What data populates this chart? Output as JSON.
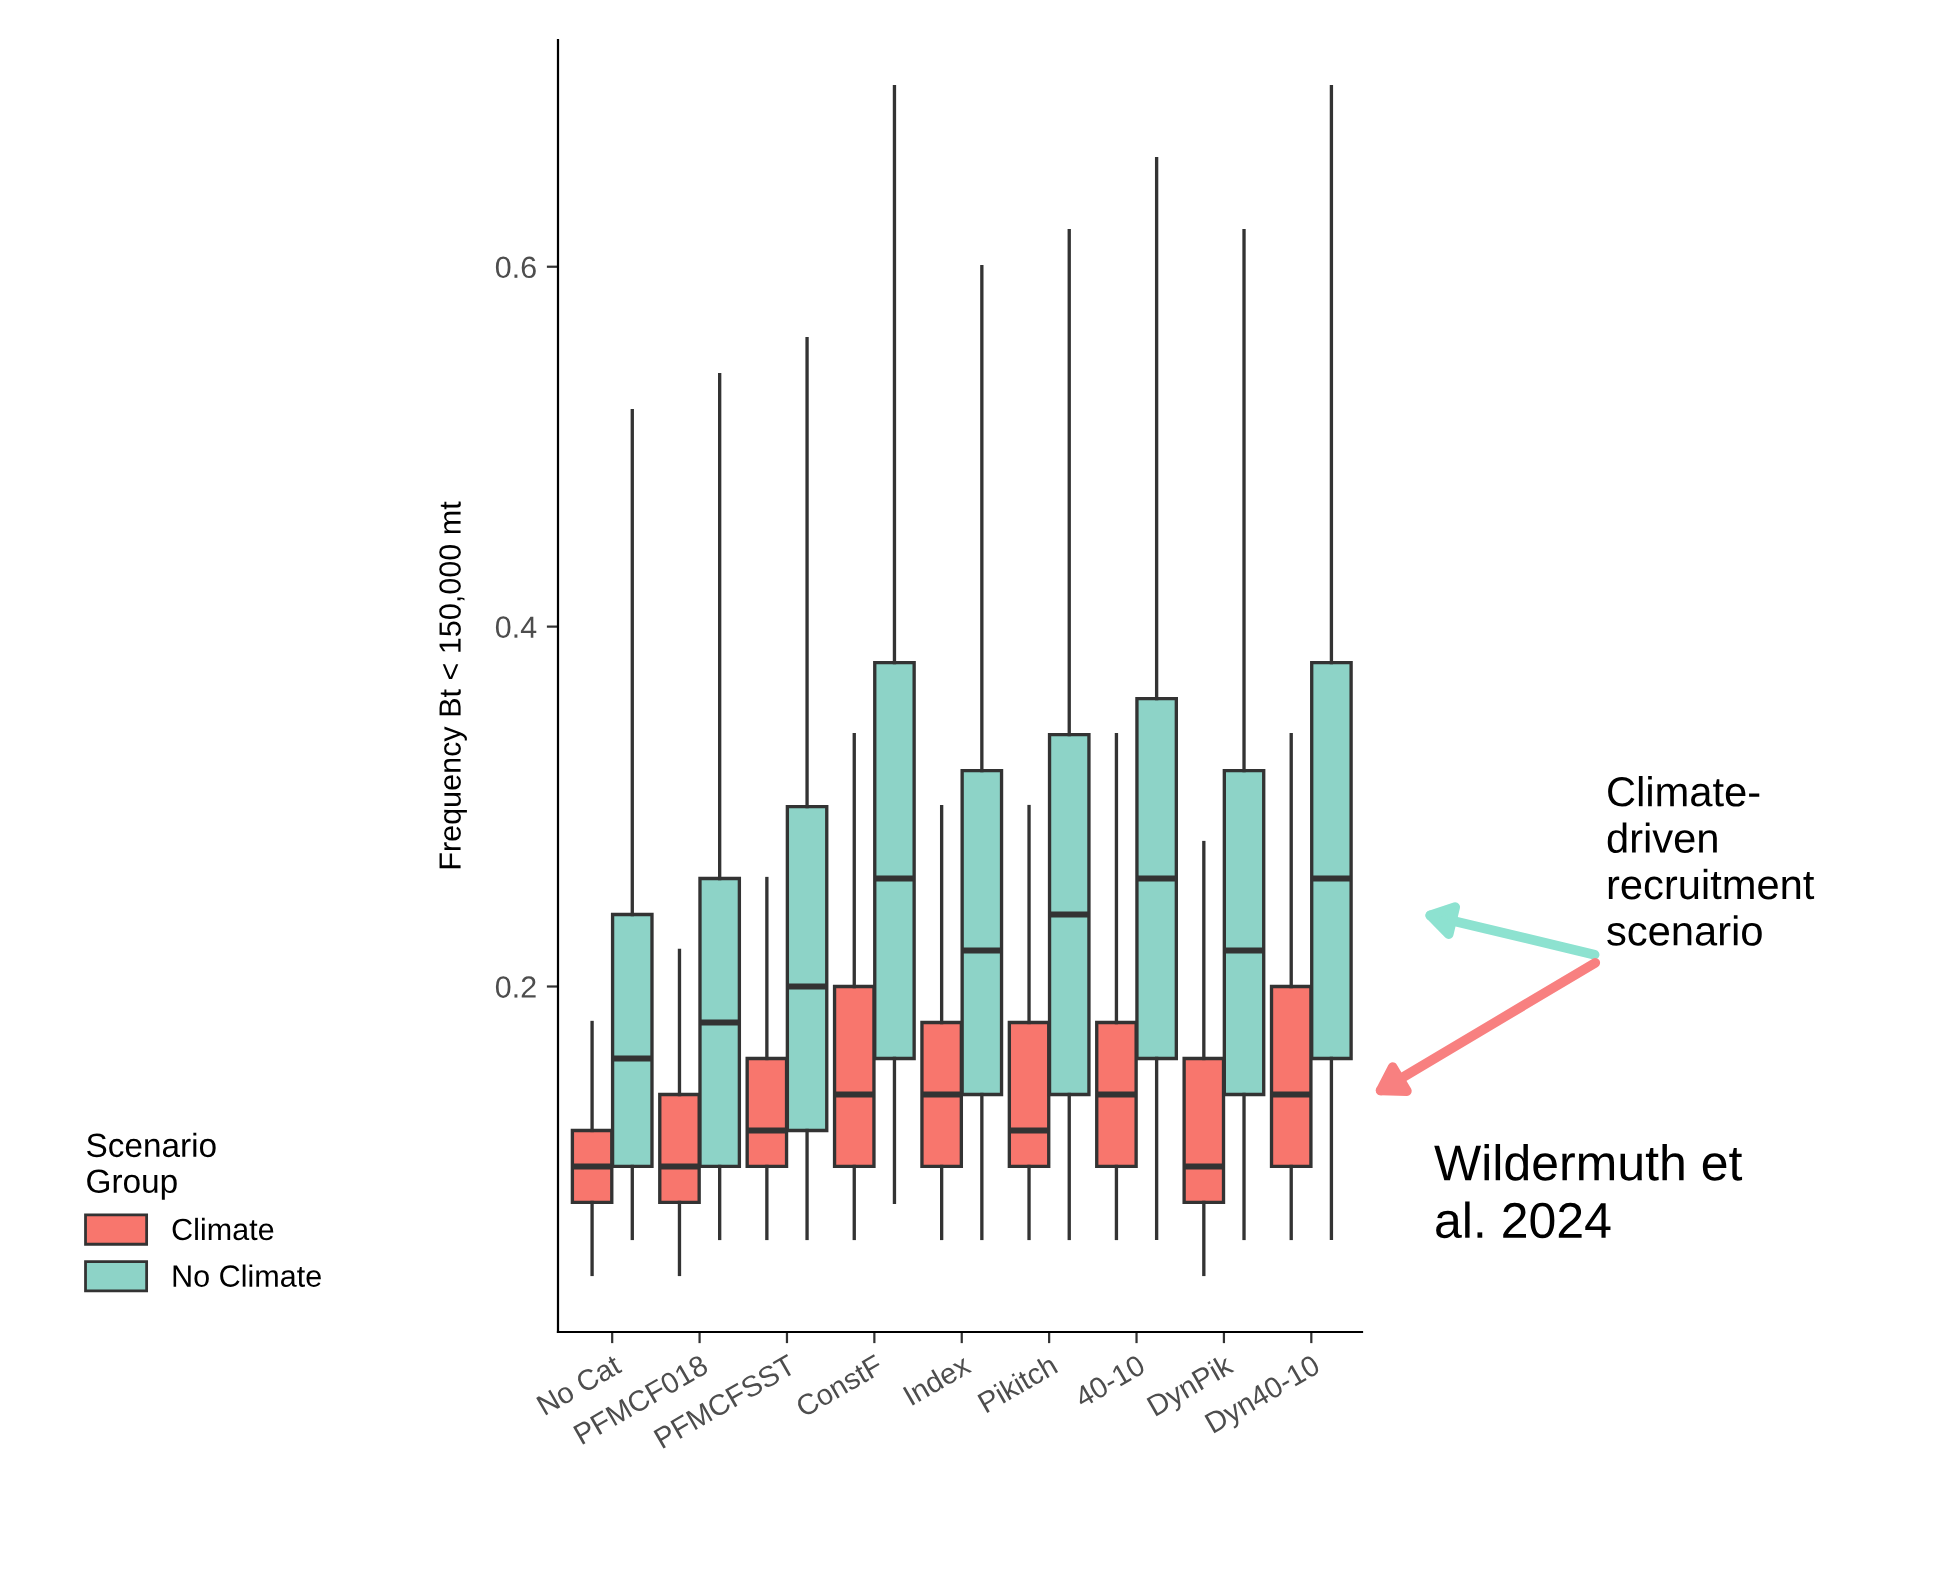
{
  "chart_data": {
    "type": "box",
    "ylabel": "Frequency Bt < 150,000 mt",
    "legend_title": "Scenario\nGroup",
    "categories": [
      "No Cat",
      "PFMCF018",
      "PFMCFSST",
      "ConstF",
      "Index",
      "Pikitch",
      "40-10",
      "DynPik",
      "Dyn40-10"
    ],
    "ylim": [
      0.008,
      0.726
    ],
    "yticks": [
      0.2,
      0.4,
      0.6
    ],
    "grid": false,
    "legend": "left",
    "series": [
      {
        "name": "Climate",
        "color": "#f8766d",
        "boxes": [
          {
            "low": 0.04,
            "q1": 0.08,
            "median": 0.1,
            "q3": 0.12,
            "high": 0.18
          },
          {
            "low": 0.04,
            "q1": 0.08,
            "median": 0.1,
            "q3": 0.14,
            "high": 0.22
          },
          {
            "low": 0.06,
            "q1": 0.1,
            "median": 0.12,
            "q3": 0.16,
            "high": 0.26
          },
          {
            "low": 0.06,
            "q1": 0.1,
            "median": 0.14,
            "q3": 0.2,
            "high": 0.34
          },
          {
            "low": 0.06,
            "q1": 0.1,
            "median": 0.14,
            "q3": 0.18,
            "high": 0.3
          },
          {
            "low": 0.06,
            "q1": 0.1,
            "median": 0.12,
            "q3": 0.18,
            "high": 0.3
          },
          {
            "low": 0.06,
            "q1": 0.1,
            "median": 0.14,
            "q3": 0.18,
            "high": 0.34
          },
          {
            "low": 0.04,
            "q1": 0.08,
            "median": 0.1,
            "q3": 0.16,
            "high": 0.28
          },
          {
            "low": 0.06,
            "q1": 0.1,
            "median": 0.14,
            "q3": 0.2,
            "high": 0.34
          }
        ]
      },
      {
        "name": "No Climate",
        "color": "#8dd3c7",
        "boxes": [
          {
            "low": 0.06,
            "q1": 0.1,
            "median": 0.16,
            "q3": 0.24,
            "high": 0.52
          },
          {
            "low": 0.06,
            "q1": 0.1,
            "median": 0.18,
            "q3": 0.26,
            "high": 0.54
          },
          {
            "low": 0.06,
            "q1": 0.12,
            "median": 0.2,
            "q3": 0.3,
            "high": 0.56
          },
          {
            "low": 0.08,
            "q1": 0.16,
            "median": 0.26,
            "q3": 0.38,
            "high": 0.7
          },
          {
            "low": 0.06,
            "q1": 0.14,
            "median": 0.22,
            "q3": 0.32,
            "high": 0.6
          },
          {
            "low": 0.06,
            "q1": 0.14,
            "median": 0.24,
            "q3": 0.34,
            "high": 0.62
          },
          {
            "low": 0.06,
            "q1": 0.16,
            "median": 0.26,
            "q3": 0.36,
            "high": 0.66
          },
          {
            "low": 0.06,
            "q1": 0.14,
            "median": 0.22,
            "q3": 0.32,
            "high": 0.62
          },
          {
            "low": 0.06,
            "q1": 0.16,
            "median": 0.26,
            "q3": 0.38,
            "high": 0.7
          }
        ]
      }
    ],
    "annotations": [
      "Climate-\ndriven\nrecruitment\nscenario",
      "Wildermuth et\nal. 2024"
    ]
  }
}
